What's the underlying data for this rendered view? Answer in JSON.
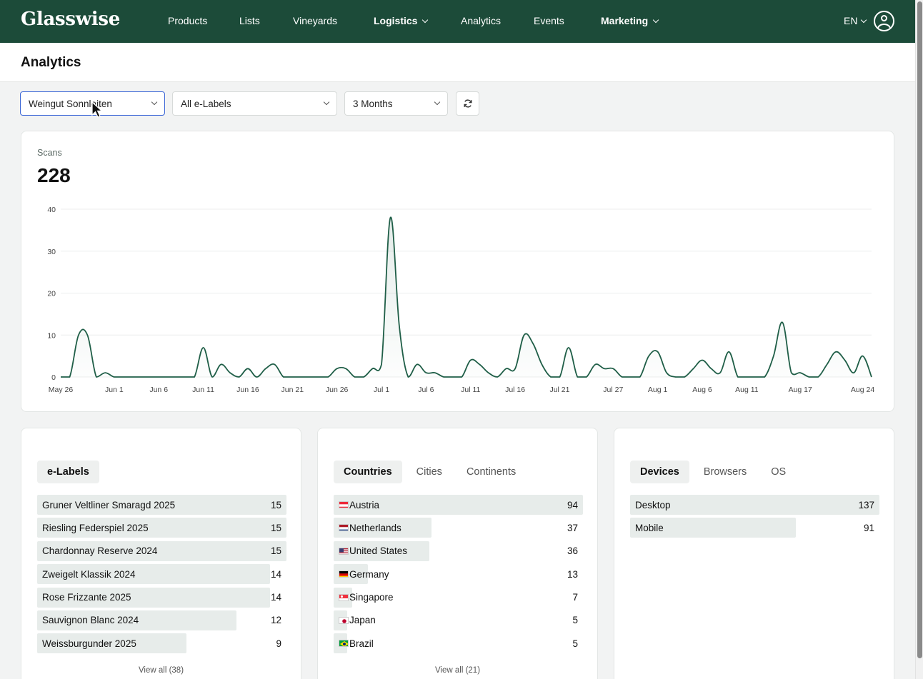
{
  "brand": "Glasswise",
  "nav": {
    "items": [
      {
        "label": "Products",
        "dropdown": false
      },
      {
        "label": "Lists",
        "dropdown": false
      },
      {
        "label": "Vineyards",
        "dropdown": false
      },
      {
        "label": "Logistics",
        "dropdown": true
      },
      {
        "label": "Analytics",
        "dropdown": false
      },
      {
        "label": "Events",
        "dropdown": false
      },
      {
        "label": "Marketing",
        "dropdown": true
      }
    ],
    "language": "EN"
  },
  "page": {
    "title": "Analytics"
  },
  "filters": {
    "winery": "Weingut Sonnleiten",
    "labels": "All e-Labels",
    "period": "3 Months"
  },
  "scans": {
    "label": "Scans",
    "total": "228"
  },
  "chart_data": {
    "type": "area",
    "ylim": [
      0,
      40
    ],
    "yticks": [
      0,
      10,
      20,
      30,
      40
    ],
    "xticks": [
      "May 26",
      "Jun 1",
      "Jun 6",
      "Jun 11",
      "Jun 16",
      "Jun 21",
      "Jun 26",
      "Jul 1",
      "Jul 6",
      "Jul 11",
      "Jul 16",
      "Jul 21",
      "Jul 27",
      "Aug 1",
      "Aug 6",
      "Aug 11",
      "Aug 17",
      "Aug 24"
    ],
    "x_start": "2025-05-26",
    "values": [
      0,
      0,
      10,
      10,
      0,
      1,
      0,
      0,
      0,
      0,
      0,
      0,
      0,
      0,
      0,
      0,
      7,
      0,
      3,
      1,
      0,
      2,
      0,
      2,
      3,
      0,
      0,
      0,
      0,
      0,
      0,
      2,
      2,
      0,
      0,
      2,
      3,
      38,
      12,
      0,
      3,
      1,
      1,
      0,
      0,
      0,
      4,
      3,
      1,
      0,
      2,
      2,
      10,
      8,
      3,
      0,
      0,
      7,
      0,
      0,
      3,
      2,
      2,
      0,
      0,
      0,
      5,
      6,
      1,
      0,
      0,
      2,
      4,
      2,
      1,
      6,
      0,
      0,
      0,
      0,
      5,
      13,
      1,
      1,
      0,
      0,
      3,
      6,
      4,
      1,
      5,
      0
    ],
    "color": "#1f5e47"
  },
  "elabels": {
    "tab": "e-Labels",
    "max": 15,
    "rows": [
      {
        "name": "Gruner Veltliner Smaragd 2025",
        "value": 15
      },
      {
        "name": "Riesling Federspiel 2025",
        "value": 15
      },
      {
        "name": "Chardonnay Reserve 2024",
        "value": 15
      },
      {
        "name": "Zweigelt Klassik 2024",
        "value": 14
      },
      {
        "name": "Rose Frizzante 2025",
        "value": 14
      },
      {
        "name": "Sauvignon Blanc 2024",
        "value": 12
      },
      {
        "name": "Weissburgunder 2025",
        "value": 9
      }
    ],
    "view_all": "View all (38)"
  },
  "geo": {
    "tabs": [
      "Countries",
      "Cities",
      "Continents"
    ],
    "active": "Countries",
    "max": 94,
    "rows": [
      {
        "name": "Austria",
        "value": 94,
        "flag": "austria-flag-icon"
      },
      {
        "name": "Netherlands",
        "value": 37,
        "flag": "netherlands-flag-icon"
      },
      {
        "name": "United States",
        "value": 36,
        "flag": "us-flag-icon"
      },
      {
        "name": "Germany",
        "value": 13,
        "flag": "germany-flag-icon"
      },
      {
        "name": "Singapore",
        "value": 7,
        "flag": "singapore-flag-icon"
      },
      {
        "name": "Japan",
        "value": 5,
        "flag": "japan-flag-icon"
      },
      {
        "name": "Brazil",
        "value": 5,
        "flag": "brazil-flag-icon"
      }
    ],
    "view_all": "View all (21)"
  },
  "tech": {
    "tabs": [
      "Devices",
      "Browsers",
      "OS"
    ],
    "active": "Devices",
    "max": 137,
    "rows": [
      {
        "name": "Desktop",
        "value": 137
      },
      {
        "name": "Mobile",
        "value": 91
      }
    ]
  },
  "colors": {
    "nav_bg": "#1c4b39",
    "line": "#1f5e47",
    "bar_fill": "#e7ecea",
    "active_select_border": "#3b66d6"
  },
  "icons": {
    "refresh": "refresh-icon",
    "cursor": "mouse-cursor-icon",
    "account": "account-circle-icon"
  }
}
